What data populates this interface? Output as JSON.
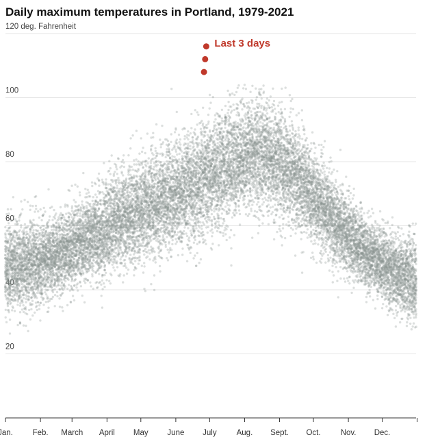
{
  "chart_data": {
    "type": "scatter",
    "title": "Daily maximum temperatures in Portland, 1979-2021",
    "ylabel_unit": "deg. Fahrenheit",
    "y_ticks": [
      120,
      100,
      80,
      60,
      40,
      20
    ],
    "ylim": [
      0,
      120
    ],
    "x_ticks": [
      "Jan.",
      "Feb.",
      "March",
      "April",
      "May",
      "June",
      "July",
      "Aug.",
      "Sept.",
      "Oct.",
      "Nov.",
      "Dec."
    ],
    "grid": true,
    "historical_series": {
      "years": "1979-2021",
      "color": "#8a9593",
      "daily_pattern": {
        "day_of_year": [
          1,
          15,
          32,
          46,
          60,
          74,
          91,
          105,
          121,
          135,
          152,
          166,
          182,
          196,
          213,
          227,
          244,
          258,
          274,
          288,
          305,
          319,
          335,
          349,
          365
        ],
        "typical_max_f": [
          47,
          48,
          49,
          51,
          53,
          56,
          59,
          62,
          65,
          67,
          70,
          72,
          75,
          79,
          82,
          82,
          80,
          76,
          69,
          63,
          57,
          52,
          48,
          45,
          43
        ],
        "spread_f": [
          7,
          7,
          6.5,
          6,
          6,
          6.5,
          7,
          7.5,
          8,
          8,
          8,
          8.5,
          9,
          9,
          8.5,
          8.5,
          8.5,
          8,
          7,
          6.5,
          6,
          5.5,
          5.5,
          6,
          6.5
        ]
      }
    },
    "highlight_series": {
      "label": "Last 3 days",
      "color": "#c0392b",
      "points": [
        {
          "date": "June 26, 2021",
          "day_of_year": 177,
          "value": 108
        },
        {
          "date": "June 27, 2021",
          "day_of_year": 178,
          "value": 112
        },
        {
          "date": "June 28, 2021",
          "day_of_year": 179,
          "value": 116
        }
      ]
    }
  }
}
